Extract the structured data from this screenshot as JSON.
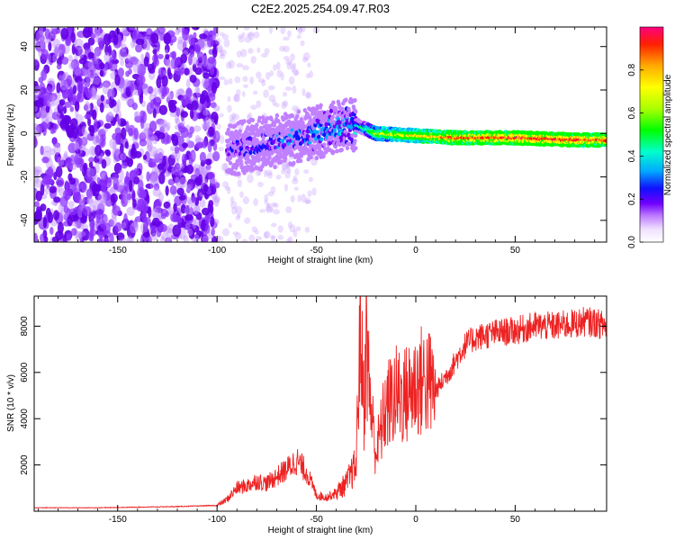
{
  "title": "C2E2.2025.254.09.47.R03",
  "colors": {
    "frame": "#000000",
    "snr_line": "#ee2222",
    "background": "#ffffff"
  },
  "chart_data": [
    {
      "type": "heatmap",
      "title": "C2E2.2025.254.09.47.R03",
      "xlabel": "Height of straight line (km)",
      "ylabel": "Frequency (Hz)",
      "xlim": [
        -192,
        96
      ],
      "ylim": [
        -50,
        49
      ],
      "xticks": [
        -150,
        -100,
        -50,
        0,
        50
      ],
      "yticks": [
        -40,
        -20,
        0,
        20,
        40
      ],
      "colorbar": {
        "label": "Normalized spectral amplitude",
        "range": [
          0,
          1
        ],
        "ticks": [
          0.0,
          0.2,
          0.4,
          0.6,
          0.8
        ]
      },
      "ridge": {
        "description_points_x": [
          -95,
          -80,
          -60,
          -40,
          -30,
          -20,
          0,
          20,
          50,
          80,
          96
        ],
        "frequency_hz": [
          -8,
          -5,
          -2,
          3,
          4,
          0,
          -1,
          -2,
          -2,
          -3,
          -3
        ],
        "amplitude": [
          0.2,
          0.25,
          0.3,
          0.35,
          0.4,
          0.7,
          0.8,
          0.9,
          0.95,
          0.95,
          0.9
        ]
      }
    },
    {
      "type": "line",
      "title": "",
      "xlabel": "Height of straight line (km)",
      "ylabel": "SNR (10 * v/v)",
      "xlim": [
        -192,
        96
      ],
      "ylim": [
        0,
        9300
      ],
      "xticks": [
        -150,
        -100,
        -50,
        0,
        50
      ],
      "yticks": [
        2000,
        4000,
        6000,
        8000
      ],
      "series": [
        {
          "name": "SNR",
          "x": [
            -192,
            -160,
            -120,
            -100,
            -95,
            -90,
            -85,
            -80,
            -75,
            -70,
            -65,
            -60,
            -55,
            -50,
            -45,
            -40,
            -35,
            -30,
            -28,
            -26,
            -25,
            -24,
            -22,
            -20,
            -15,
            -10,
            -5,
            0,
            5,
            10,
            15,
            20,
            25,
            30,
            40,
            50,
            60,
            70,
            80,
            85,
            90,
            96
          ],
          "values": [
            150,
            150,
            200,
            250,
            500,
            1000,
            1100,
            1300,
            1200,
            1500,
            1800,
            2200,
            1700,
            700,
            600,
            800,
            1200,
            2000,
            8000,
            4500,
            7500,
            6000,
            4000,
            2500,
            4500,
            5000,
            5000,
            5500,
            5700,
            5200,
            5800,
            6500,
            7200,
            7500,
            7700,
            7800,
            8000,
            8000,
            8100,
            8200,
            8150,
            8000
          ]
        }
      ]
    }
  ]
}
